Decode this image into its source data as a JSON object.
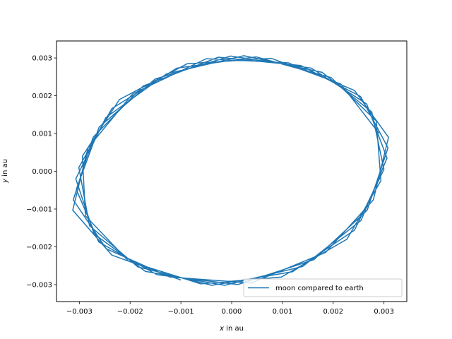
{
  "chart_data": {
    "type": "line",
    "title": "",
    "xlabel_var": "x",
    "xlabel_rest": " in au",
    "ylabel_var": "y",
    "ylabel_rest": " in au",
    "xlim": [
      -0.00345,
      0.00345
    ],
    "ylim": [
      -0.00345,
      0.00345
    ],
    "xticks": [
      -0.003,
      -0.002,
      -0.001,
      0.0,
      0.001,
      0.002,
      0.003
    ],
    "xtick_labels": [
      "−0.003",
      "−0.002",
      "−0.001",
      "0.000",
      "0.001",
      "0.002",
      "0.003"
    ],
    "yticks": [
      -0.003,
      -0.002,
      -0.001,
      0.0,
      0.001,
      0.002,
      0.003
    ],
    "ytick_labels": [
      "−0.003",
      "−0.002",
      "−0.001",
      "0.000",
      "0.001",
      "0.002",
      "0.003"
    ],
    "grid": false,
    "legend_position": "lower-right",
    "series": [
      {
        "name": "moon compared to earth",
        "color": "#1f77b4",
        "x": [
          0.0029,
          0.00215,
          0.00078,
          -0.00087,
          -0.00221,
          -0.00294,
          -0.00288,
          -0.00203,
          -0.00061,
          0.00098,
          0.00227,
          0.00294,
          0.00285,
          0.00196,
          0.00048,
          -0.00108,
          -0.00236,
          -0.00301,
          -0.0028,
          -0.00185,
          -0.00039,
          0.0012,
          0.00242,
          0.003,
          0.00276,
          0.00178,
          0.00024,
          -0.00128,
          -0.00248,
          -0.00307,
          -0.00271,
          -0.0017,
          -0.00014,
          0.0014,
          0.00255,
          0.00306,
          0.00266,
          0.00157,
          -2e-05,
          -0.00151,
          -0.00261,
          -0.00306,
          -0.00262,
          -0.00147,
          0.00012,
          0.00162,
          0.00267,
          0.00308,
          0.00254,
          0.00136,
          -0.00026,
          -0.00174,
          -0.00273,
          -0.00312,
          -0.00247,
          -0.00122,
          0.00038,
          0.00185,
          0.00279,
          0.00309,
          0.00242,
          0.00112,
          -0.0005,
          -0.00195,
          -0.00283,
          -0.00313,
          -0.00236,
          -0.001
        ],
        "y": [
          0.00101,
          0.00231,
          0.00299,
          0.00285,
          0.0019,
          0.0004,
          -0.00118,
          -0.00238,
          -0.00298,
          -0.0028,
          -0.0018,
          -0.00025,
          0.00133,
          0.00248,
          0.00303,
          0.00273,
          0.00166,
          0.0001,
          -0.00144,
          -0.00253,
          -0.00302,
          -0.00266,
          -0.00156,
          5e-05,
          0.00157,
          0.00262,
          0.00306,
          0.00258,
          0.00142,
          -0.0002,
          -0.00166,
          -0.00265,
          -0.00302,
          -0.00252,
          -0.0013,
          0.00035,
          0.00178,
          0.00273,
          0.00305,
          0.00244,
          0.00117,
          -0.00048,
          -0.00187,
          -0.00274,
          -0.003,
          -0.00234,
          -0.00103,
          0.00062,
          0.00198,
          0.0028,
          0.00302,
          0.00226,
          0.0009,
          -0.00076,
          -0.00205,
          -0.0028,
          -0.00296,
          -0.00215,
          -0.00076,
          0.0009,
          0.00214,
          0.00287,
          0.00298,
          0.00205,
          0.00062,
          -0.00103,
          -0.00222,
          -0.00288
        ]
      }
    ]
  }
}
